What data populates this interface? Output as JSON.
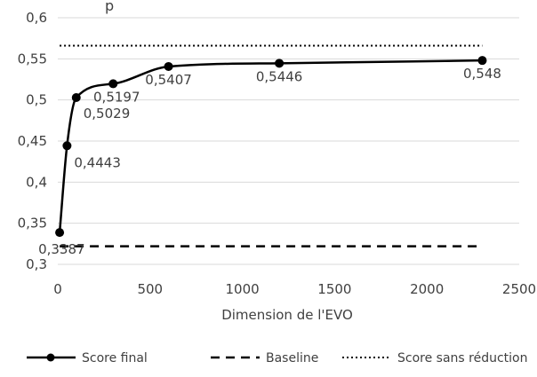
{
  "chart_data": {
    "type": "line",
    "title": "",
    "top_text": "p",
    "xlabel": "Dimension de l'EVO",
    "ylabel": "",
    "xlim": [
      0,
      2500
    ],
    "ylim": [
      0.3,
      0.6
    ],
    "xticks": [
      0,
      500,
      1000,
      1500,
      2000,
      2500
    ],
    "xtick_labels": [
      "0",
      "500",
      "1000",
      "1500",
      "2000",
      "2500"
    ],
    "yticks": [
      0.3,
      0.35,
      0.4,
      0.45,
      0.5,
      0.55,
      0.6
    ],
    "ytick_labels": [
      "0,3",
      "0,35",
      "0,4",
      "0,45",
      "0,5",
      "0,55",
      "0,6"
    ],
    "grid": "horizontal",
    "legend_position": "bottom",
    "series": [
      {
        "name": "Score final",
        "style": "solid-markers",
        "color": "#000000",
        "x": [
          10,
          50,
          100,
          300,
          600,
          1200,
          2300
        ],
        "y": [
          0.3387,
          0.4443,
          0.5029,
          0.5197,
          0.5407,
          0.5446,
          0.548
        ],
        "labels": [
          "0,3387",
          "0,4443",
          "0,5029",
          "0,5197",
          "0,5407",
          "0,5446",
          "0,548"
        ]
      },
      {
        "name": "Baseline",
        "style": "dashed",
        "color": "#000000",
        "x": [
          10,
          2300
        ],
        "y": [
          0.322,
          0.322
        ]
      },
      {
        "name": "Score sans réduction",
        "style": "dotted",
        "color": "#000000",
        "x": [
          10,
          2300
        ],
        "y": [
          0.566,
          0.566
        ]
      }
    ]
  }
}
